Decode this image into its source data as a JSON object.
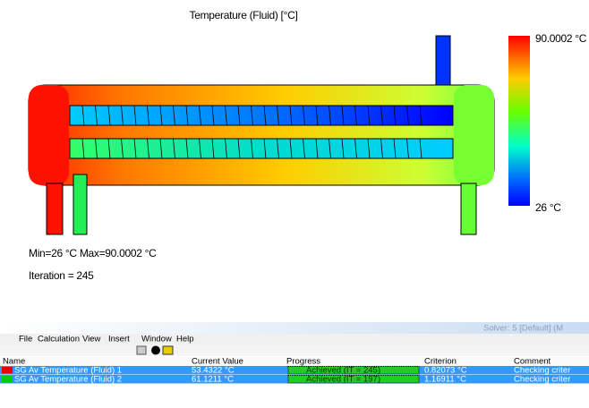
{
  "plot": {
    "title": "Temperature (Fluid) [°C]",
    "legend_max": "90.0002 °C",
    "legend_min": "26 °C",
    "minmax": "Min=26 °C  Max=90.0002 °C",
    "iteration": "Iteration = 245"
  },
  "solver": {
    "title": "Solver: 5 [Default] (M",
    "menu": [
      "File",
      "Calculation",
      "View",
      "Insert",
      "Window",
      "Help"
    ],
    "table": {
      "header": [
        "Name",
        "Current Value",
        "Progress",
        "Criterion",
        "Comment"
      ],
      "rows": [
        [
          "SG Av Temperature (Fluid) 1",
          "53.4322 °C",
          "Achieved (IT = 245)",
          "0.82073 °C",
          "Checking criter"
        ],
        [
          "SG Av Temperature (Fluid) 2",
          "61.1211 °C",
          "Achieved (IT = 197)",
          "1.16911 °C",
          "Checking criter"
        ]
      ]
    }
  }
}
